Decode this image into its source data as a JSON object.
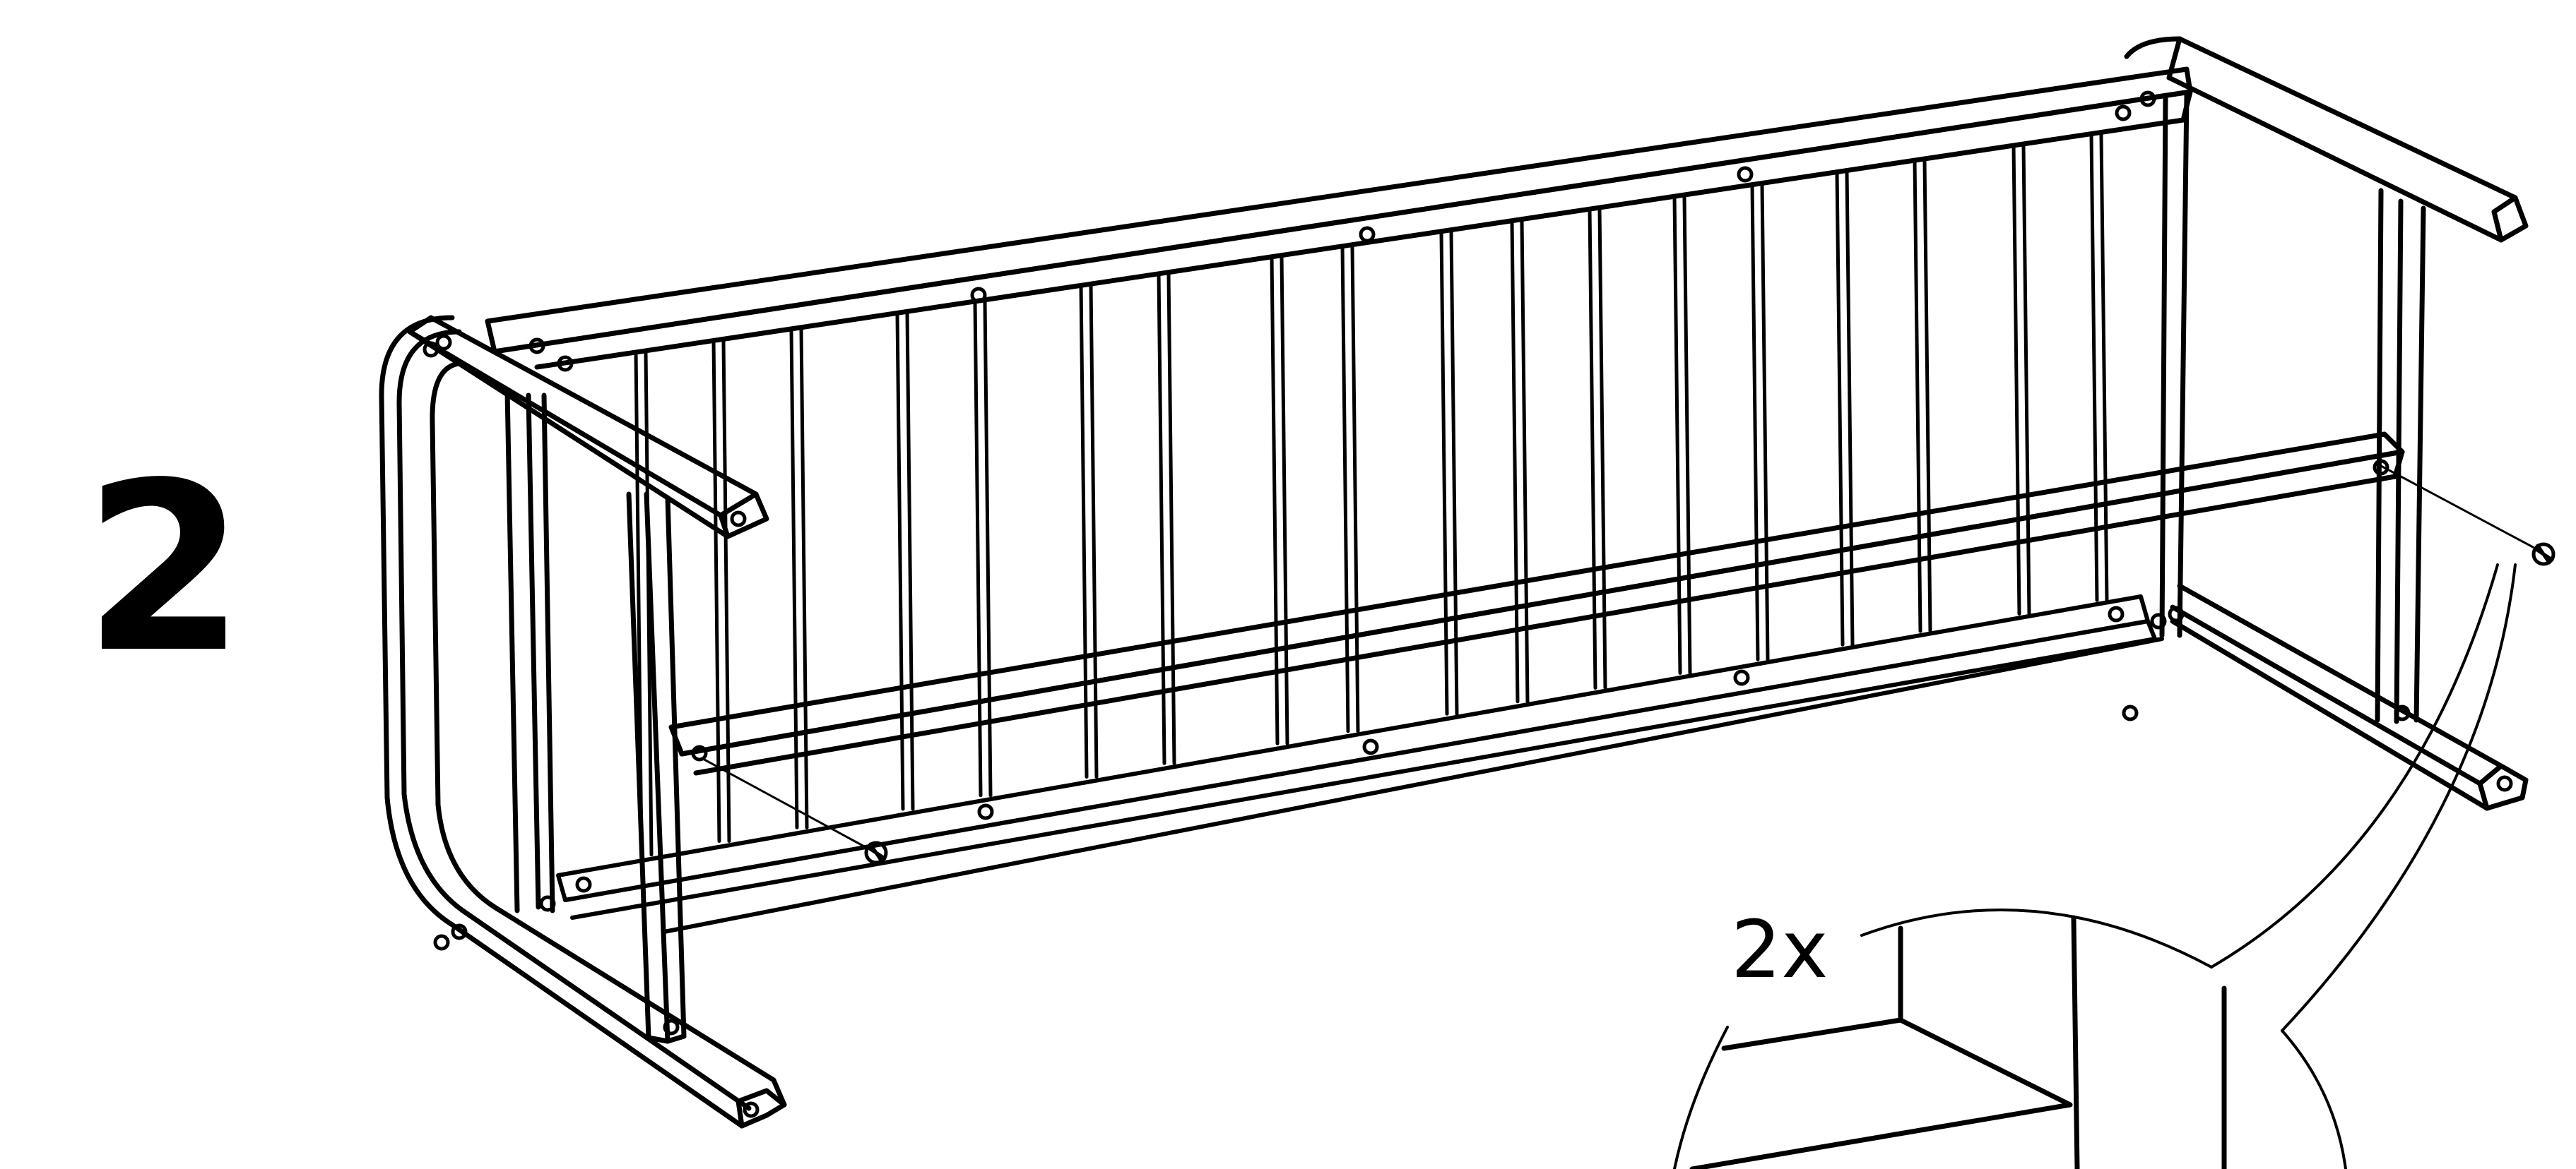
{
  "step": {
    "number": "2"
  },
  "callout": {
    "quantity": "2x"
  },
  "colors": {
    "ink": "#000000",
    "paper": "#ffffff"
  },
  "icons": {
    "bench": "bench-frame-icon",
    "screw": "screw-icon",
    "detail": "magnified-detail-icon"
  }
}
